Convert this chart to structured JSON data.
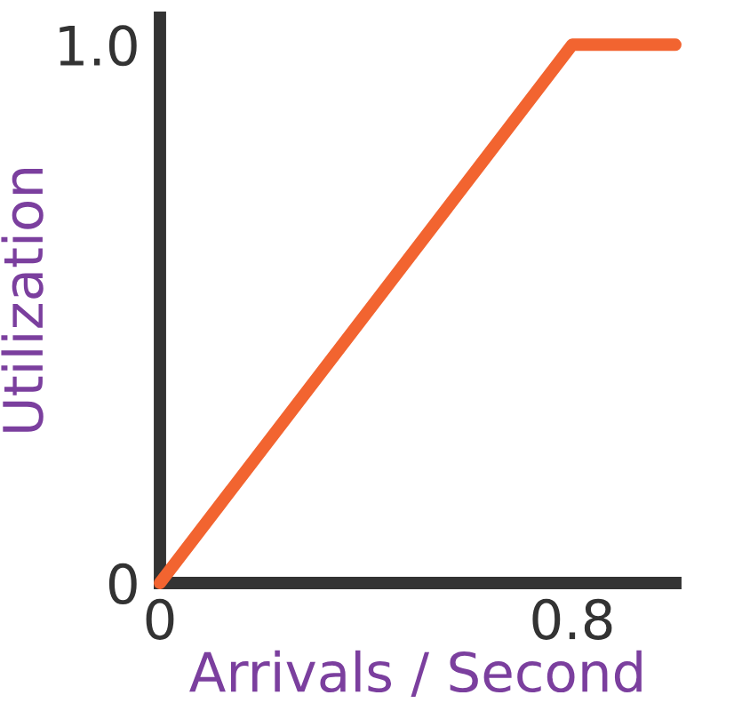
{
  "chart_data": {
    "type": "line",
    "xlabel": "Arrivals / Second",
    "ylabel": "Utilization",
    "x": [
      0,
      0.8,
      1.0
    ],
    "series": [
      {
        "color": "#f26430",
        "values": [
          0,
          1.0,
          1.0
        ]
      }
    ],
    "xlim": [
      0,
      1.0
    ],
    "ylim": [
      0,
      1.05
    ],
    "xticks": [
      0,
      0.8
    ],
    "yticks": [
      0,
      {
        "value": 1.0,
        "label": "1.0"
      }
    ],
    "grid": false,
    "legend": false,
    "marker": "none",
    "line_style": "solid"
  }
}
